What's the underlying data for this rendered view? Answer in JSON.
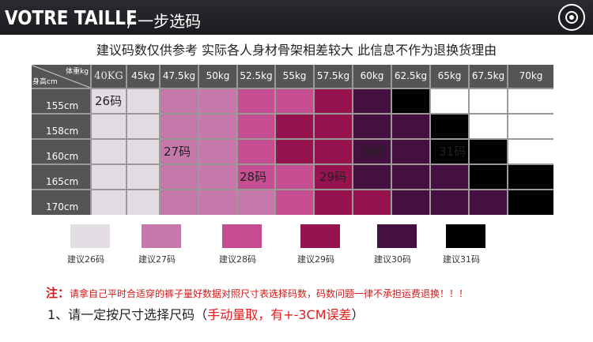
{
  "banner": {
    "title": "VOTRE TAILLE",
    "subtitle": "/ 一步选码",
    "logo_icon": "brand-badge-icon"
  },
  "notice": "建议码数仅供参考  实际各人身材骨架相差较大  此信息不作为退换货理由",
  "table": {
    "corner_weight": "体重kg",
    "corner_height": "身高cm",
    "weights": [
      "40KG",
      "45kg",
      "47.5kg",
      "50kg",
      "52.5kg",
      "55kg",
      "57.5kg",
      "60kg",
      "62.5kg",
      "65kg",
      "67.5kg",
      "70kg"
    ],
    "heights": [
      "155cm",
      "158cm",
      "160cm",
      "165cm",
      "170cm"
    ],
    "size_labels": [
      "26码",
      "27码",
      "28码",
      "29码",
      "30码",
      "31码"
    ],
    "grid_sizes": [
      [
        26,
        26,
        27,
        27,
        28,
        28,
        29,
        30,
        31,
        0,
        0,
        0
      ],
      [
        26,
        26,
        27,
        27,
        28,
        29,
        29,
        30,
        30,
        31,
        0,
        0
      ],
      [
        26,
        26,
        27,
        27,
        28,
        29,
        29,
        30,
        30,
        31,
        31,
        0
      ],
      [
        26,
        26,
        27,
        27,
        28,
        28,
        29,
        30,
        30,
        30,
        31,
        31
      ],
      [
        26,
        26,
        27,
        27,
        27,
        28,
        29,
        29,
        30,
        30,
        30,
        31
      ]
    ]
  },
  "swatches": [
    {
      "label": "建议26码",
      "color": "#e2dde2"
    },
    {
      "label": "建议27码",
      "color": "#c678aa"
    },
    {
      "label": "建议28码",
      "color": "#c64e90"
    },
    {
      "label": "建议29码",
      "color": "#97134f"
    },
    {
      "label": "建议30码",
      "color": "#43103f"
    },
    {
      "label": "建议31码",
      "color": "#000000"
    }
  ],
  "colors": {
    "26": "#e2dde2",
    "27": "#c678aa",
    "28": "#c64e90",
    "29": "#97134f",
    "30": "#43103f",
    "31": "#000000",
    "0": "#ffffff"
  },
  "note": {
    "prefix": "注：",
    "text": "请拿自己平时合适穿的裤子量好数据对照尺寸表选择码数，码数问题一律不承担运费退换！！！"
  },
  "tip": {
    "prefix": "1、请一定按尺寸选择尺码（",
    "highlight": "手动量取，有+-3CM误差",
    "suffix": "）"
  }
}
